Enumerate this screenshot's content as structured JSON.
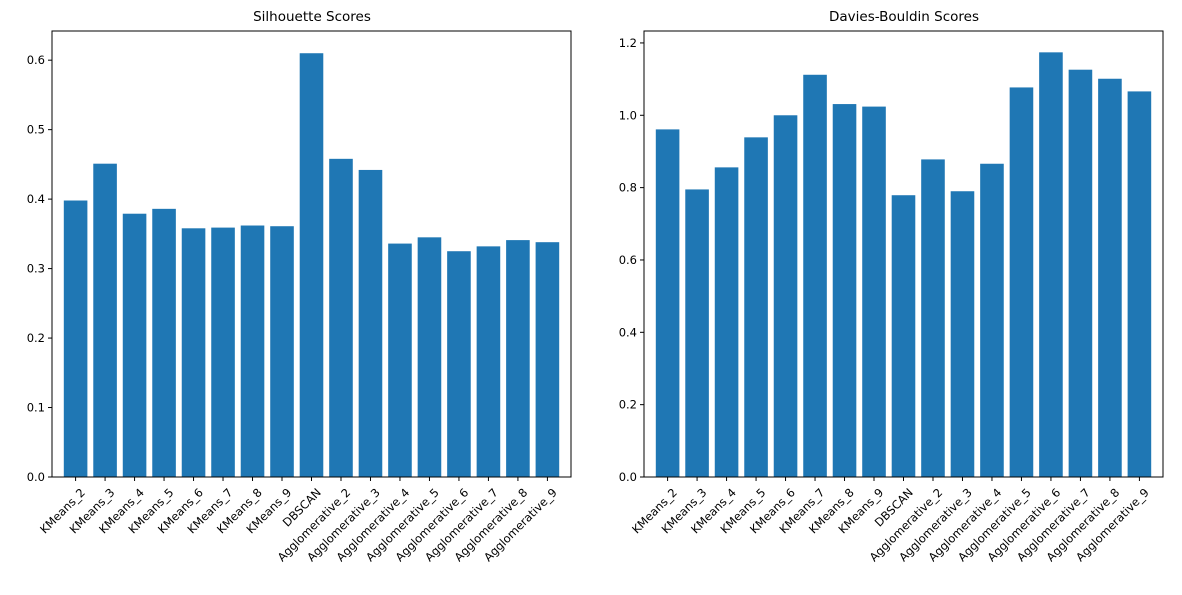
{
  "chart_data": [
    {
      "type": "bar",
      "title": "Silhouette Scores",
      "xlabel": "",
      "ylabel": "",
      "categories": [
        "KMeans_2",
        "KMeans_3",
        "KMeans_4",
        "KMeans_5",
        "KMeans_6",
        "KMeans_7",
        "KMeans_8",
        "KMeans_9",
        "DBSCAN",
        "Agglomerative_2",
        "Agglomerative_3",
        "Agglomerative_4",
        "Agglomerative_5",
        "Agglomerative_6",
        "Agglomerative_7",
        "Agglomerative_8",
        "Agglomerative_9"
      ],
      "values": [
        0.398,
        0.451,
        0.379,
        0.386,
        0.358,
        0.359,
        0.362,
        0.361,
        0.61,
        0.458,
        0.442,
        0.336,
        0.345,
        0.325,
        0.332,
        0.341,
        0.338
      ],
      "ylim": [
        0,
        0.642
      ],
      "yticks": [
        0.0,
        0.1,
        0.2,
        0.3,
        0.4,
        0.5,
        0.6
      ],
      "ytick_labels": [
        "0.0",
        "0.1",
        "0.2",
        "0.3",
        "0.4",
        "0.5",
        "0.6"
      ],
      "color": "#1f77b4",
      "grid": false,
      "legend": "none"
    },
    {
      "type": "bar",
      "title": "Davies-Bouldin Scores",
      "xlabel": "",
      "ylabel": "",
      "categories": [
        "KMeans_2",
        "KMeans_3",
        "KMeans_4",
        "KMeans_5",
        "KMeans_6",
        "KMeans_7",
        "KMeans_8",
        "KMeans_9",
        "DBSCAN",
        "Agglomerative_2",
        "Agglomerative_3",
        "Agglomerative_4",
        "Agglomerative_5",
        "Agglomerative_6",
        "Agglomerative_7",
        "Agglomerative_8",
        "Agglomerative_9"
      ],
      "values": [
        0.961,
        0.795,
        0.856,
        0.939,
        1.0,
        1.112,
        1.031,
        1.024,
        0.779,
        0.878,
        0.79,
        0.866,
        1.077,
        1.174,
        1.126,
        1.101,
        1.066
      ],
      "ylim": [
        0,
        1.233
      ],
      "yticks": [
        0.0,
        0.2,
        0.4,
        0.6,
        0.8,
        1.0,
        1.2
      ],
      "ytick_labels": [
        "0.0",
        "0.2",
        "0.4",
        "0.6",
        "0.8",
        "1.0",
        "1.2"
      ],
      "color": "#1f77b4",
      "grid": false,
      "legend": "none"
    }
  ]
}
